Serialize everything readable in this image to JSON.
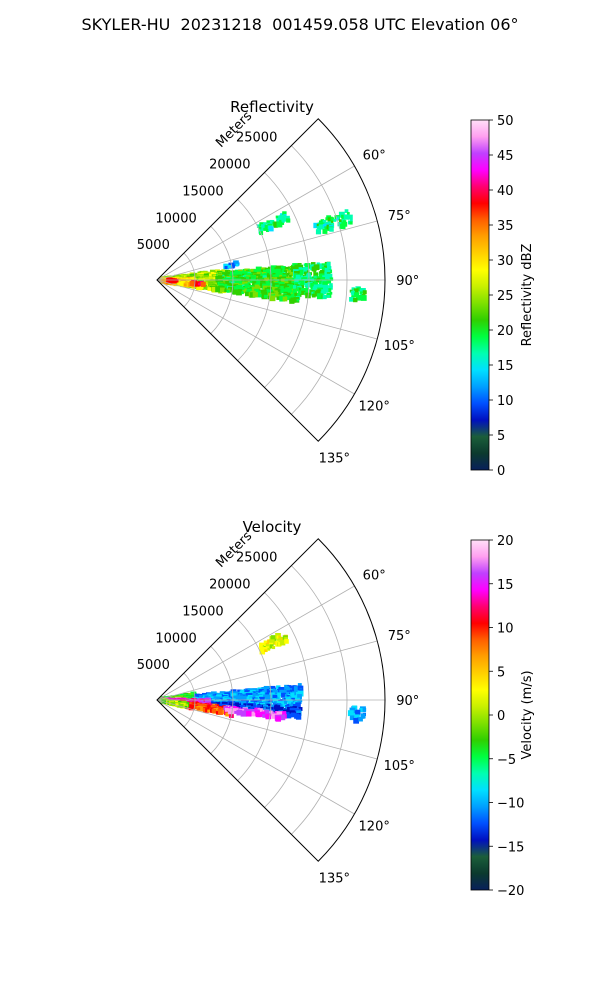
{
  "figure": {
    "suptitle": "SKYLER-HU  20231218  001459.058 UTC Elevation 06°"
  },
  "chart_data": [
    {
      "type": "heatmap",
      "title": "Reflectivity",
      "projection": "polar sector",
      "range_label": "Meters",
      "range_ticks": [
        5000,
        10000,
        15000,
        20000,
        25000
      ],
      "range_limit": [
        0,
        30000
      ],
      "azimuth_ticks": [
        "60°",
        "75°",
        "90°",
        "105°",
        "120°",
        "135°"
      ],
      "azimuth_limit": [
        45,
        135
      ],
      "grid": true,
      "colorbar": {
        "label": "Reflectivity dBZ",
        "range": [
          0,
          50
        ],
        "ticks": [
          "0",
          "5",
          "10",
          "15",
          "20",
          "25",
          "30",
          "35",
          "40",
          "45",
          "50"
        ]
      },
      "echo_regions": [
        {
          "az": [
            82,
            100
          ],
          "r": [
            0,
            9000
          ],
          "level": 25
        },
        {
          "az": [
            88,
            100
          ],
          "r": [
            0,
            5000
          ],
          "level": 30
        },
        {
          "az": [
            91,
            93
          ],
          "r": [
            1500,
            3000
          ],
          "level": 37
        },
        {
          "az": [
            94,
            96
          ],
          "r": [
            4500,
            6500
          ],
          "level": 38
        },
        {
          "az": [
            84,
            99
          ],
          "r": [
            8000,
            19000
          ],
          "level": 21
        },
        {
          "az": [
            84,
            96
          ],
          "r": [
            18000,
            23000
          ],
          "level": 19
        },
        {
          "az": [
            78,
            80
          ],
          "r": [
            9000,
            11000
          ],
          "level": 13
        },
        {
          "az": [
            62,
            66
          ],
          "r": [
            15000,
            19000
          ],
          "level": 18
        },
        {
          "az": [
            70,
            74
          ],
          "r": [
            22000,
            27000
          ],
          "level": 18
        },
        {
          "az": [
            92,
            96
          ],
          "r": [
            25500,
            27500
          ],
          "level": 19
        }
      ],
      "colormap": [
        "#08205b",
        "#0b3a2e",
        "#1b5e3a",
        "#0010c0",
        "#0050ff",
        "#00a0ff",
        "#00e0ff",
        "#00ffb0",
        "#00ff40",
        "#30d000",
        "#7ee000",
        "#c8f000",
        "#ffff00",
        "#ffd000",
        "#ffa000",
        "#ff6000",
        "#ff0000",
        "#ff0070",
        "#ff00ff",
        "#c040ff",
        "#ff9ff0",
        "#ffe0f8"
      ]
    },
    {
      "type": "heatmap",
      "title": "Velocity",
      "projection": "polar sector",
      "range_label": "Meters",
      "range_ticks": [
        5000,
        10000,
        15000,
        20000,
        25000
      ],
      "range_limit": [
        0,
        30000
      ],
      "azimuth_ticks": [
        "60°",
        "75°",
        "90°",
        "105°",
        "120°",
        "135°"
      ],
      "azimuth_limit": [
        45,
        135
      ],
      "grid": true,
      "colorbar": {
        "label": "Velocity (m/s)",
        "range": [
          -20,
          20
        ],
        "ticks": [
          "−20",
          "−15",
          "−10",
          "−5",
          "0",
          "5",
          "10",
          "15",
          "20"
        ]
      },
      "echo_regions": [
        {
          "az": [
            81,
            90
          ],
          "r": [
            0,
            5000
          ],
          "level": -3
        },
        {
          "az": [
            84,
            93
          ],
          "r": [
            5000,
            19000
          ],
          "level": -10
        },
        {
          "az": [
            93,
            97
          ],
          "r": [
            5000,
            19000
          ],
          "level": -12
        },
        {
          "az": [
            90,
            100
          ],
          "r": [
            1000,
            7000
          ],
          "level": 14
        },
        {
          "az": [
            96,
            102
          ],
          "r": [
            3000,
            10000
          ],
          "level": 9
        },
        {
          "az": [
            98,
            104
          ],
          "r": [
            0,
            4000
          ],
          "level": 0
        },
        {
          "az": [
            96,
            99
          ],
          "r": [
            9000,
            17000
          ],
          "level": 15
        },
        {
          "az": [
            62,
            66
          ],
          "r": [
            15000,
            19000
          ],
          "level": 2
        },
        {
          "az": [
            92,
            96
          ],
          "r": [
            25500,
            27500
          ],
          "level": -10
        }
      ],
      "colormap": [
        "#08205b",
        "#0b3a2e",
        "#1b5e3a",
        "#0010c0",
        "#0050ff",
        "#00a0ff",
        "#00e0ff",
        "#00ffb0",
        "#00ff40",
        "#30d000",
        "#7ee000",
        "#c8f000",
        "#ffff00",
        "#ffd000",
        "#ffa000",
        "#ff6000",
        "#ff0000",
        "#ff0070",
        "#ff00ff",
        "#c040ff",
        "#ff9ff0",
        "#ffe0f8"
      ]
    }
  ]
}
